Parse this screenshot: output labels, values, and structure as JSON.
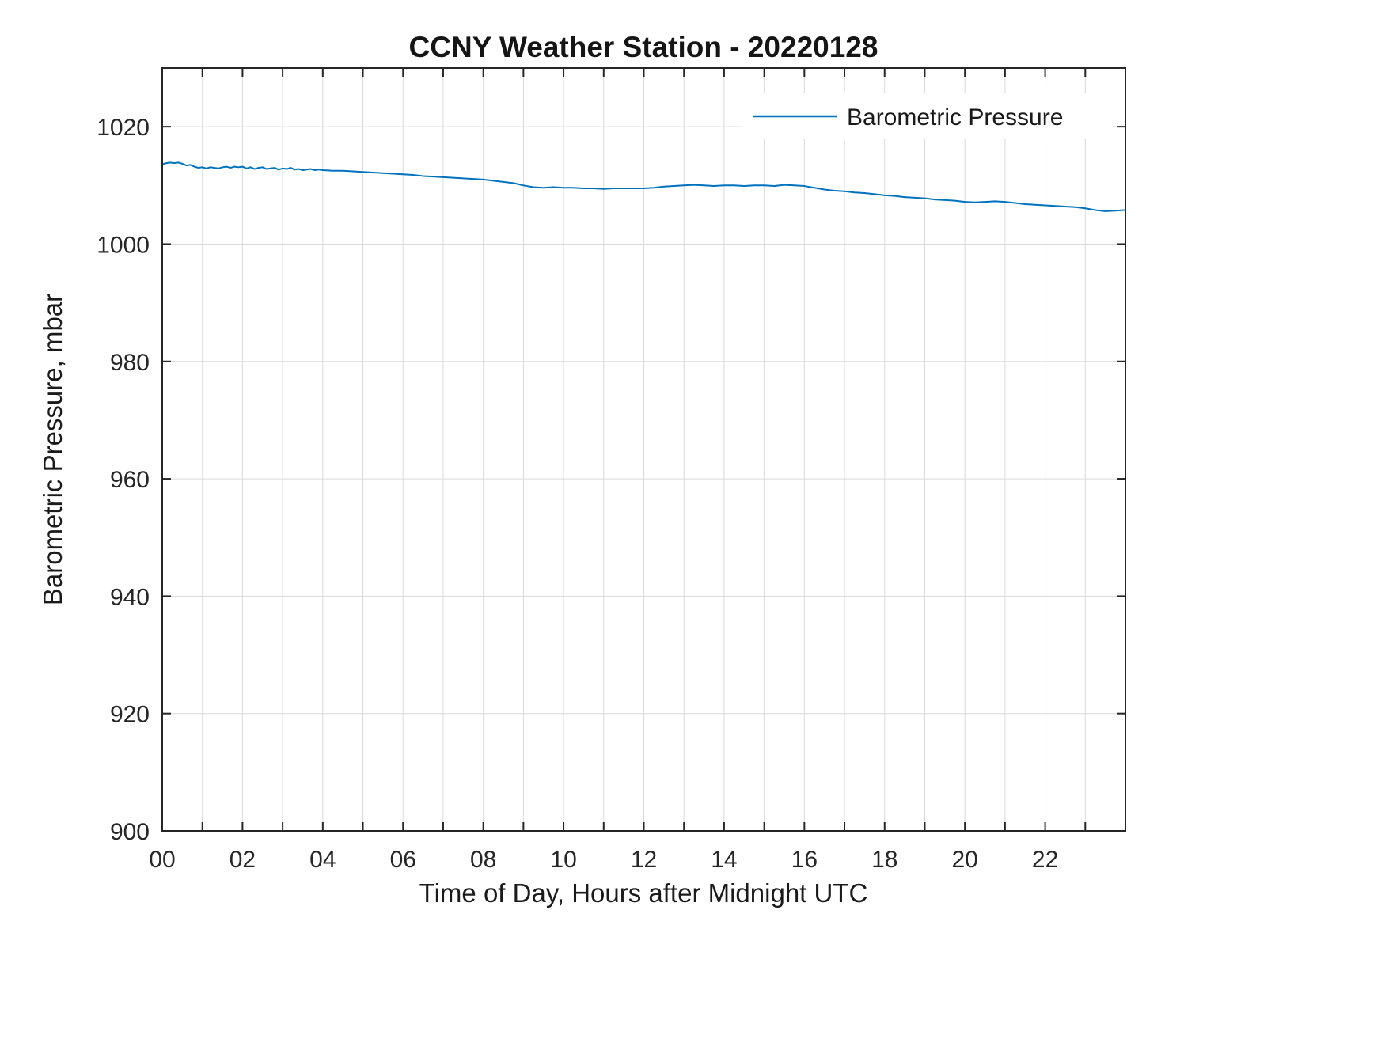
{
  "chart_data": {
    "type": "line",
    "title": "CCNY Weather Station - 20220128",
    "xlabel": "Time of Day, Hours after Midnight UTC",
    "ylabel": "Barometric Pressure, mbar",
    "xlim": [
      0,
      24
    ],
    "ylim": [
      900,
      1030
    ],
    "grid": true,
    "grid_color": "#d9d9d9",
    "axis_color": "#262626",
    "line_color": "#0072BD",
    "legend_position": "top-right",
    "xticks": [
      0,
      1,
      2,
      3,
      4,
      5,
      6,
      7,
      8,
      9,
      10,
      11,
      12,
      13,
      14,
      15,
      16,
      17,
      18,
      19,
      20,
      21,
      22,
      23
    ],
    "xtick_labeled": [
      0,
      2,
      4,
      6,
      8,
      10,
      12,
      14,
      16,
      18,
      20,
      22
    ],
    "xtick_labels": [
      "00",
      "02",
      "04",
      "06",
      "08",
      "10",
      "12",
      "14",
      "16",
      "18",
      "20",
      "22"
    ],
    "yticks": [
      900,
      920,
      940,
      960,
      980,
      1000,
      1020
    ],
    "ytick_labels": [
      "900",
      "920",
      "940",
      "960",
      "980",
      "1000",
      "1020"
    ],
    "series": [
      {
        "name": "Barometric Pressure",
        "x": [
          0,
          0.1,
          0.2,
          0.3,
          0.4,
          0.5,
          0.6,
          0.7,
          0.8,
          0.9,
          1.0,
          1.1,
          1.2,
          1.3,
          1.4,
          1.5,
          1.6,
          1.7,
          1.8,
          1.9,
          2.0,
          2.1,
          2.2,
          2.3,
          2.4,
          2.5,
          2.6,
          2.7,
          2.8,
          2.9,
          3.0,
          3.1,
          3.2,
          3.3,
          3.4,
          3.5,
          3.6,
          3.7,
          3.8,
          3.9,
          4.0,
          4.25,
          4.5,
          4.75,
          5.0,
          5.25,
          5.5,
          5.75,
          6.0,
          6.25,
          6.5,
          6.75,
          7.0,
          7.25,
          7.5,
          7.75,
          8.0,
          8.25,
          8.5,
          8.75,
          9.0,
          9.25,
          9.5,
          9.75,
          10.0,
          10.25,
          10.5,
          10.75,
          11.0,
          11.25,
          11.5,
          11.75,
          12.0,
          12.25,
          12.5,
          12.75,
          13.0,
          13.25,
          13.5,
          13.75,
          14.0,
          14.25,
          14.5,
          14.75,
          15.0,
          15.25,
          15.5,
          15.75,
          16.0,
          16.25,
          16.5,
          16.75,
          17.0,
          17.25,
          17.5,
          17.75,
          18.0,
          18.25,
          18.5,
          18.75,
          19.0,
          19.25,
          19.5,
          19.75,
          20.0,
          20.25,
          20.5,
          20.75,
          21.0,
          21.25,
          21.5,
          21.75,
          22.0,
          22.25,
          22.5,
          22.75,
          23.0,
          23.25,
          23.5,
          23.75,
          23.98
        ],
        "y": [
          1013.6,
          1013.8,
          1013.9,
          1013.8,
          1013.9,
          1013.7,
          1013.4,
          1013.5,
          1013.2,
          1013.0,
          1013.1,
          1012.9,
          1013.1,
          1013.0,
          1012.9,
          1013.1,
          1013.2,
          1013.0,
          1013.2,
          1013.1,
          1013.2,
          1012.9,
          1013.1,
          1012.8,
          1013.0,
          1013.1,
          1012.8,
          1012.9,
          1013.0,
          1012.7,
          1012.9,
          1012.8,
          1013.0,
          1012.7,
          1012.8,
          1012.6,
          1012.7,
          1012.8,
          1012.6,
          1012.7,
          1012.6,
          1012.5,
          1012.5,
          1012.4,
          1012.3,
          1012.2,
          1012.1,
          1012.0,
          1011.9,
          1011.8,
          1011.6,
          1011.5,
          1011.4,
          1011.3,
          1011.2,
          1011.1,
          1011.0,
          1010.8,
          1010.6,
          1010.4,
          1010.0,
          1009.7,
          1009.6,
          1009.7,
          1009.6,
          1009.6,
          1009.5,
          1009.5,
          1009.4,
          1009.5,
          1009.5,
          1009.5,
          1009.5,
          1009.6,
          1009.8,
          1009.9,
          1010.0,
          1010.1,
          1010.0,
          1009.9,
          1010.0,
          1010.0,
          1009.9,
          1010.0,
          1010.0,
          1009.9,
          1010.1,
          1010.0,
          1009.9,
          1009.6,
          1009.3,
          1009.1,
          1009.0,
          1008.8,
          1008.7,
          1008.5,
          1008.3,
          1008.2,
          1008.0,
          1007.9,
          1007.8,
          1007.6,
          1007.5,
          1007.4,
          1007.2,
          1007.1,
          1007.2,
          1007.3,
          1007.2,
          1007.0,
          1006.8,
          1006.7,
          1006.6,
          1006.5,
          1006.4,
          1006.3,
          1006.1,
          1005.8,
          1005.6,
          1005.7,
          1005.8
        ]
      }
    ]
  }
}
